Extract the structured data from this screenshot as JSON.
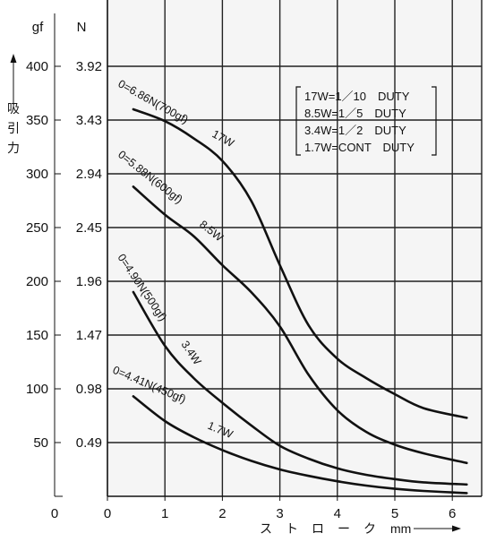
{
  "chart_data": {
    "type": "line",
    "xlabel": "ストローク",
    "xunit": "mm",
    "ylabel": "吸引力",
    "y_units": [
      "gf",
      "N"
    ],
    "xlim": [
      0,
      6.5
    ],
    "ylim_gf": [
      0,
      450
    ],
    "x_ticks": [
      "0",
      "1",
      "2",
      "3",
      "4",
      "5",
      "6"
    ],
    "y_ticks_gf": [
      "50",
      "100",
      "150",
      "200",
      "250",
      "300",
      "350",
      "400"
    ],
    "y_ticks_N": [
      "0.49",
      "0.98",
      "1.47",
      "1.96",
      "2.45",
      "2.94",
      "3.43",
      "3.92"
    ],
    "y_zero_label": "0",
    "grid": true,
    "series": [
      {
        "name": "17W",
        "label": "0=6.86N(700gf)",
        "x": [
          0.45,
          1,
          1.5,
          2,
          2.5,
          3,
          3.5,
          4,
          4.5,
          5,
          5.5,
          6.25
        ],
        "y": [
          360,
          349,
          333,
          312,
          275,
          215,
          159,
          128,
          110,
          95,
          82,
          73
        ]
      },
      {
        "name": "8.5W",
        "label": "0=5.88N(600gf)",
        "x": [
          0.45,
          1,
          1.5,
          2,
          2.5,
          3,
          3.5,
          4,
          4.5,
          5,
          5.5,
          6.25
        ],
        "y": [
          288,
          262,
          242,
          215,
          190,
          158,
          113,
          80,
          60,
          48,
          40,
          31
        ]
      },
      {
        "name": "3.4W",
        "label": "0=4.90N(500gf)",
        "x": [
          0.45,
          1,
          1.5,
          2,
          2.5,
          3,
          3.5,
          4,
          4.5,
          5,
          5.5,
          6.25
        ],
        "y": [
          190,
          140,
          110,
          87,
          66,
          47,
          35,
          26,
          20,
          16,
          13,
          11
        ]
      },
      {
        "name": "1.7W",
        "label": "0=4.41N(450gf)",
        "x": [
          0.45,
          1,
          1.5,
          2,
          2.5,
          3,
          3.5,
          4,
          4.5,
          5,
          5.5,
          6.25
        ],
        "y": [
          93,
          70,
          55,
          43,
          33,
          25,
          19,
          14,
          10,
          7,
          5,
          3
        ]
      }
    ],
    "legend": {
      "placement": "top-right",
      "entries": [
        "17W=1／10　DUTY",
        "8.5W=1／5　DUTY",
        "3.4W=1／2　DUTY",
        "1.7W=CONT　DUTY"
      ]
    }
  }
}
